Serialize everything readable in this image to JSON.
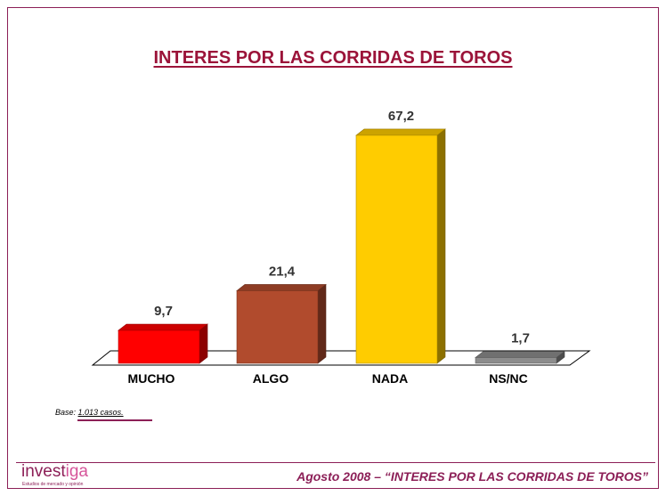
{
  "title": "INTERES POR LAS CORRIDAS DE TOROS",
  "chart_data": {
    "type": "bar",
    "title": "INTERES POR LAS CORRIDAS DE TOROS",
    "categories": [
      "MUCHO",
      "ALGO",
      "NADA",
      "NS/NC"
    ],
    "values": [
      9.7,
      21.4,
      67.2,
      1.7
    ],
    "value_labels": [
      "9,7",
      "21,4",
      "67,2",
      "1,7"
    ],
    "colors": [
      "#ff0000",
      "#b14b2d",
      "#ffcc00",
      "#8c8c8c"
    ],
    "xlabel": "",
    "ylabel": "",
    "ylim": [
      0,
      80
    ],
    "grid": false,
    "style": "3d"
  },
  "base_note": {
    "label": "Base:",
    "value": "1.013  casos."
  },
  "logo": {
    "main": "invest",
    "accent": "iga",
    "tagline": "Estudios de mercado y opinión"
  },
  "footer": {
    "text": "Agosto 2008 – “INTERES POR LAS CORRIDAS DE TOROS”"
  }
}
